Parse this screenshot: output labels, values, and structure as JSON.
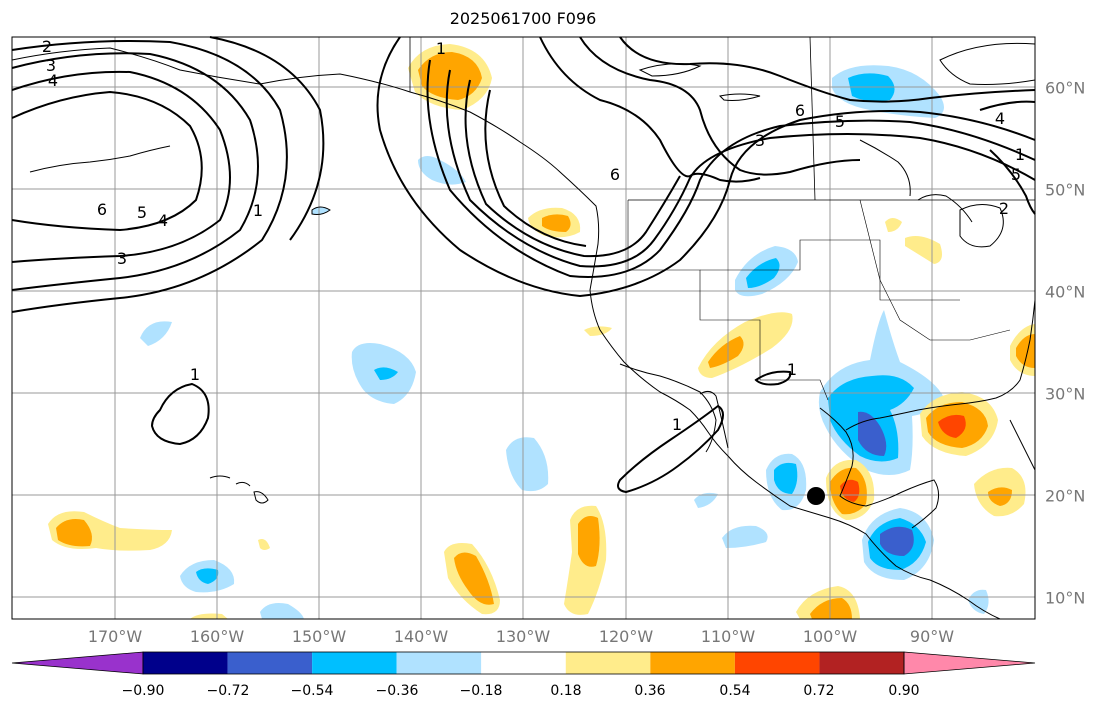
{
  "title": "2025061700 F096",
  "lon_labels": [
    "170°W",
    "160°W",
    "150°W",
    "140°W",
    "130°W",
    "120°W",
    "110°W",
    "100°W",
    "90°W"
  ],
  "lat_labels": [
    "60°N",
    "50°N",
    "40°N",
    "30°N",
    "20°N",
    "10°N"
  ],
  "contour_labels": [
    {
      "text": "1"
    },
    {
      "text": "2"
    },
    {
      "text": "3"
    },
    {
      "text": "4"
    },
    {
      "text": "6"
    },
    {
      "text": "5"
    },
    {
      "text": "4"
    },
    {
      "text": "3"
    },
    {
      "text": "1"
    },
    {
      "text": "1"
    },
    {
      "text": "6"
    },
    {
      "text": "3"
    },
    {
      "text": "5"
    },
    {
      "text": "6"
    },
    {
      "text": "1"
    },
    {
      "text": "1"
    },
    {
      "text": "4"
    },
    {
      "text": "5"
    },
    {
      "text": "2"
    },
    {
      "text": "1"
    }
  ],
  "colorbar": {
    "ticks": [
      "−0.90",
      "−0.72",
      "−0.54",
      "−0.36",
      "−0.18",
      "0.18",
      "0.36",
      "0.54",
      "0.72",
      "0.90"
    ],
    "colors": [
      "#9932CC",
      "#00008B",
      "#3A5FCD",
      "#00BFFF",
      "#B0E2FF",
      "#FFFFFF",
      "#FFEC8B",
      "#FFA500",
      "#FF4500",
      "#B22222",
      "#FF88AA"
    ]
  },
  "marker": {
    "label": "",
    "lon": -100,
    "lat": 20
  }
}
